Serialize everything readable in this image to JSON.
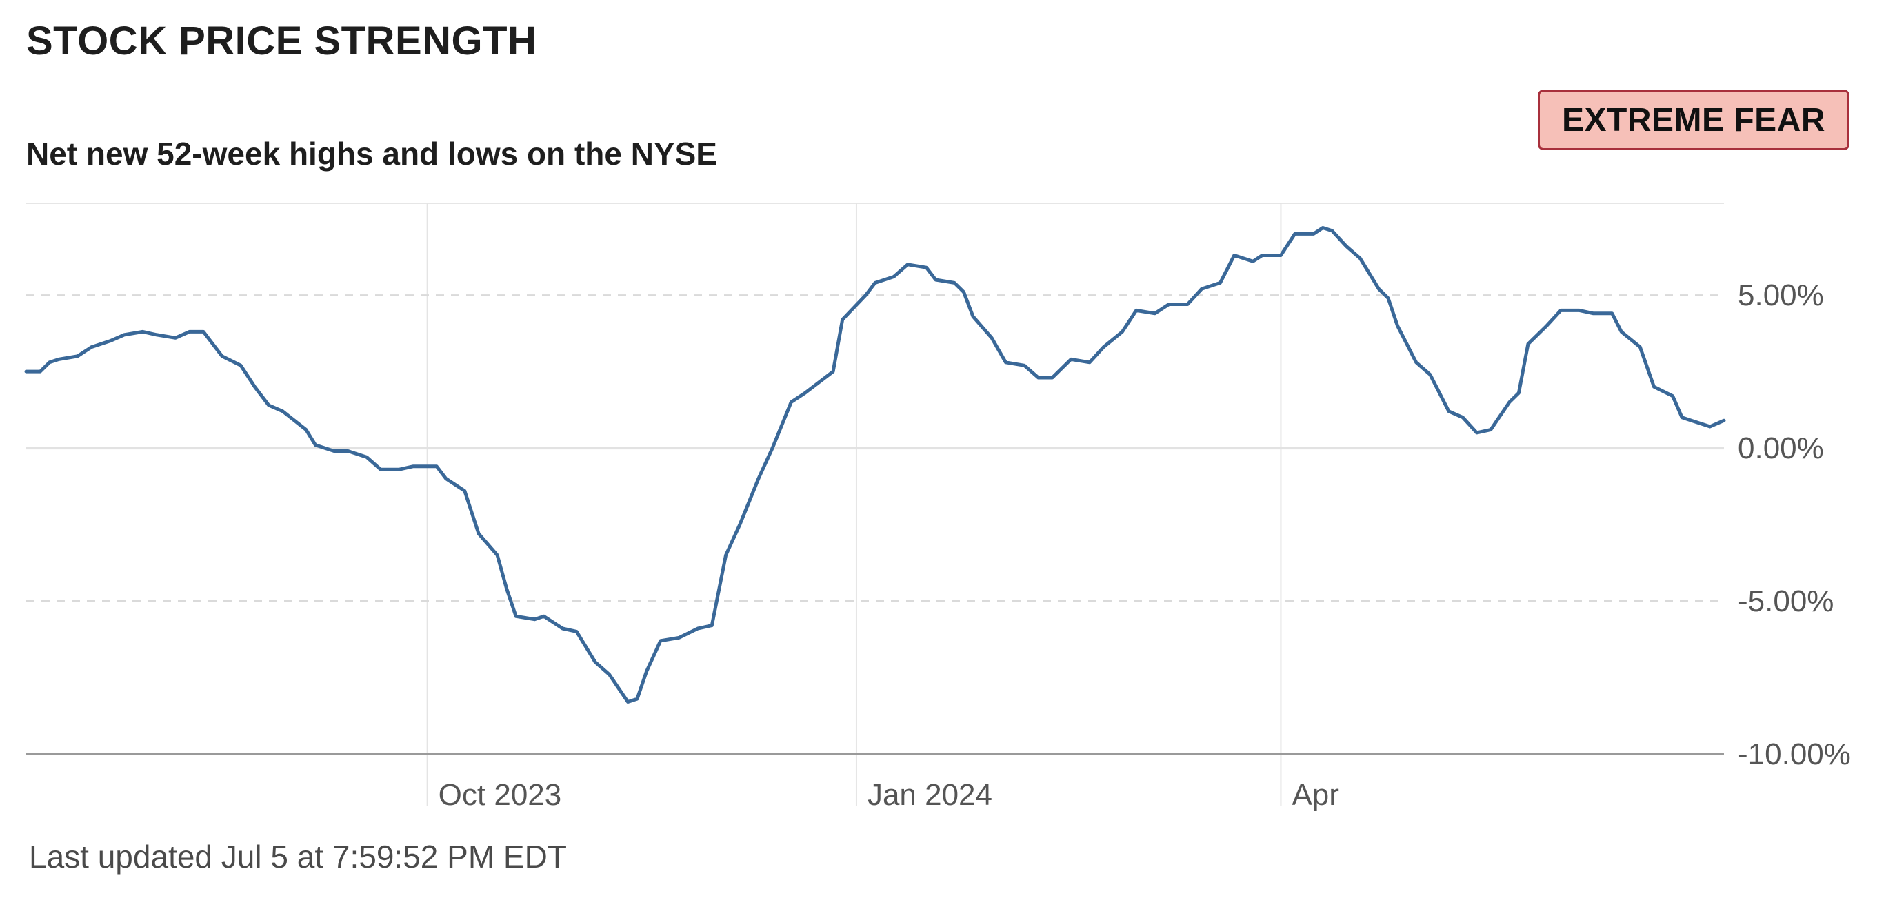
{
  "header": {
    "title": "STOCK PRICE STRENGTH",
    "subtitle": "Net new 52-week highs and lows on the NYSE"
  },
  "badge": {
    "label": "EXTREME FEAR",
    "background_color": "#f6c0b8",
    "border_color": "#a8303c"
  },
  "footer": {
    "last_updated": "Last updated Jul 5 at 7:59:52 PM EDT"
  },
  "chart_data": {
    "type": "line",
    "title": "",
    "xlabel": "",
    "ylabel": "",
    "ylim": [
      -10,
      8
    ],
    "grid": true,
    "line_color": "#3a6898",
    "y_ticks": [
      {
        "value": 5,
        "label": "5.00%"
      },
      {
        "value": 0,
        "label": "0.00%"
      },
      {
        "value": -5,
        "label": "-5.00%"
      },
      {
        "value": -10,
        "label": "-10.00%"
      }
    ],
    "x_ticks": [
      {
        "date": "2023-10-01",
        "label": "Oct 2023"
      },
      {
        "date": "2024-01-01",
        "label": "Jan 2024"
      },
      {
        "date": "2024-04-01",
        "label": "Apr"
      }
    ],
    "series": [
      {
        "values": [
          [
            "2023-07-07",
            2.5
          ],
          [
            "2023-07-10",
            2.5
          ],
          [
            "2023-07-12",
            2.8
          ],
          [
            "2023-07-14",
            2.9
          ],
          [
            "2023-07-18",
            3.0
          ],
          [
            "2023-07-21",
            3.3
          ],
          [
            "2023-07-25",
            3.5
          ],
          [
            "2023-07-28",
            3.7
          ],
          [
            "2023-08-01",
            3.8
          ],
          [
            "2023-08-04",
            3.7
          ],
          [
            "2023-08-08",
            3.6
          ],
          [
            "2023-08-11",
            3.8
          ],
          [
            "2023-08-14",
            3.8
          ],
          [
            "2023-08-18",
            3.0
          ],
          [
            "2023-08-22",
            2.7
          ],
          [
            "2023-08-25",
            2.0
          ],
          [
            "2023-08-28",
            1.4
          ],
          [
            "2023-08-31",
            1.2
          ],
          [
            "2023-09-05",
            0.6
          ],
          [
            "2023-09-07",
            0.1
          ],
          [
            "2023-09-11",
            -0.1
          ],
          [
            "2023-09-14",
            -0.1
          ],
          [
            "2023-09-18",
            -0.3
          ],
          [
            "2023-09-21",
            -0.7
          ],
          [
            "2023-09-25",
            -0.7
          ],
          [
            "2023-09-28",
            -0.6
          ],
          [
            "2023-10-03",
            -0.6
          ],
          [
            "2023-10-05",
            -1.0
          ],
          [
            "2023-10-09",
            -1.4
          ],
          [
            "2023-10-12",
            -2.8
          ],
          [
            "2023-10-16",
            -3.5
          ],
          [
            "2023-10-18",
            -4.6
          ],
          [
            "2023-10-20",
            -5.5
          ],
          [
            "2023-10-24",
            -5.6
          ],
          [
            "2023-10-26",
            -5.5
          ],
          [
            "2023-10-30",
            -5.9
          ],
          [
            "2023-11-02",
            -6.0
          ],
          [
            "2023-11-06",
            -7.0
          ],
          [
            "2023-11-09",
            -7.4
          ],
          [
            "2023-11-13",
            -8.3
          ],
          [
            "2023-11-15",
            -8.2
          ],
          [
            "2023-11-17",
            -7.3
          ],
          [
            "2023-11-20",
            -6.3
          ],
          [
            "2023-11-24",
            -6.2
          ],
          [
            "2023-11-28",
            -5.9
          ],
          [
            "2023-12-01",
            -5.8
          ],
          [
            "2023-12-04",
            -3.5
          ],
          [
            "2023-12-07",
            -2.5
          ],
          [
            "2023-12-11",
            -1.0
          ],
          [
            "2023-12-14",
            0.0
          ],
          [
            "2023-12-18",
            1.5
          ],
          [
            "2023-12-21",
            1.8
          ],
          [
            "2023-12-27",
            2.5
          ],
          [
            "2023-12-29",
            4.2
          ],
          [
            "2024-01-03",
            5.0
          ],
          [
            "2024-01-05",
            5.4
          ],
          [
            "2024-01-09",
            5.6
          ],
          [
            "2024-01-12",
            6.0
          ],
          [
            "2024-01-16",
            5.9
          ],
          [
            "2024-01-18",
            5.5
          ],
          [
            "2024-01-22",
            5.4
          ],
          [
            "2024-01-24",
            5.1
          ],
          [
            "2024-01-26",
            4.3
          ],
          [
            "2024-01-30",
            3.6
          ],
          [
            "2024-02-02",
            2.8
          ],
          [
            "2024-02-06",
            2.7
          ],
          [
            "2024-02-09",
            2.3
          ],
          [
            "2024-02-12",
            2.3
          ],
          [
            "2024-02-16",
            2.9
          ],
          [
            "2024-02-20",
            2.8
          ],
          [
            "2024-02-23",
            3.3
          ],
          [
            "2024-02-27",
            3.8
          ],
          [
            "2024-03-01",
            4.5
          ],
          [
            "2024-03-05",
            4.4
          ],
          [
            "2024-03-08",
            4.7
          ],
          [
            "2024-03-12",
            4.7
          ],
          [
            "2024-03-15",
            5.2
          ],
          [
            "2024-03-19",
            5.4
          ],
          [
            "2024-03-22",
            6.3
          ],
          [
            "2024-03-26",
            6.1
          ],
          [
            "2024-03-28",
            6.3
          ],
          [
            "2024-04-01",
            6.3
          ],
          [
            "2024-04-04",
            7.0
          ],
          [
            "2024-04-08",
            7.0
          ],
          [
            "2024-04-10",
            7.2
          ],
          [
            "2024-04-12",
            7.1
          ],
          [
            "2024-04-15",
            6.6
          ],
          [
            "2024-04-18",
            6.2
          ],
          [
            "2024-04-22",
            5.2
          ],
          [
            "2024-04-24",
            4.9
          ],
          [
            "2024-04-26",
            4.0
          ],
          [
            "2024-04-30",
            2.8
          ],
          [
            "2024-05-03",
            2.4
          ],
          [
            "2024-05-07",
            1.2
          ],
          [
            "2024-05-10",
            1.0
          ],
          [
            "2024-05-13",
            0.5
          ],
          [
            "2024-05-16",
            0.6
          ],
          [
            "2024-05-20",
            1.5
          ],
          [
            "2024-05-22",
            1.8
          ],
          [
            "2024-05-24",
            3.4
          ],
          [
            "2024-05-28",
            4.0
          ],
          [
            "2024-05-31",
            4.5
          ],
          [
            "2024-06-04",
            4.5
          ],
          [
            "2024-06-07",
            4.4
          ],
          [
            "2024-06-11",
            4.4
          ],
          [
            "2024-06-13",
            3.8
          ],
          [
            "2024-06-17",
            3.3
          ],
          [
            "2024-06-20",
            2.0
          ],
          [
            "2024-06-24",
            1.7
          ],
          [
            "2024-06-26",
            1.0
          ],
          [
            "2024-06-28",
            0.9
          ],
          [
            "2024-07-02",
            0.7
          ],
          [
            "2024-07-05",
            0.9
          ]
        ]
      }
    ]
  }
}
